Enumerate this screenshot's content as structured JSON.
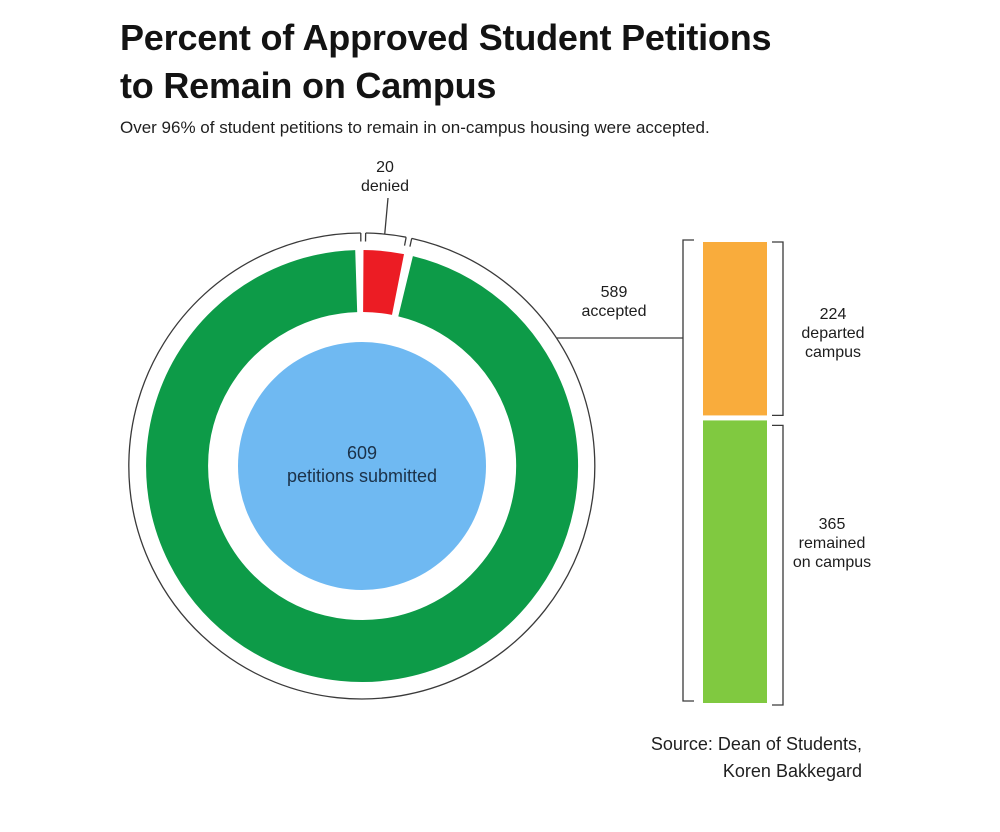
{
  "header": {
    "title_line1": "Percent of Approved Student Petitions",
    "title_line2": "to Remain on Campus",
    "subtitle": "Over 96% of student petitions to remain in on-campus housing were accepted."
  },
  "annotations": {
    "denied": {
      "value": "20",
      "label": "denied"
    },
    "accepted": {
      "value": "589",
      "label": "accepted"
    },
    "center": {
      "value": "609",
      "label": "petitions submitted"
    },
    "departed": {
      "value": "224",
      "line1": "departed",
      "line2": "campus"
    },
    "remained": {
      "value": "365",
      "line1": "remained",
      "line2": "on campus"
    }
  },
  "source": {
    "line1": "Source: Dean of Students,",
    "line2": "Koren Bakkegard"
  },
  "chart_data": [
    {
      "type": "pie",
      "subtype": "donut",
      "title": "Percent of Approved Student Petitions to Remain on Campus",
      "subtitle": "Over 96% of student petitions to remain in on-campus housing were accepted.",
      "categories": [
        "accepted",
        "denied"
      ],
      "values": [
        589,
        20
      ],
      "total": 609,
      "center_label": "609 petitions submitted",
      "legend_position": "annotations",
      "colors": {
        "accepted": "#0d9b48",
        "denied": "#ec1c24",
        "center": "#6fb9f2",
        "line": "#3a3a3a"
      }
    },
    {
      "type": "bar",
      "subtype": "stacked-single-column",
      "represents": "589 accepted",
      "categories": [
        "departed campus",
        "remained on campus"
      ],
      "values": [
        224,
        365
      ],
      "colors": {
        "departed": "#f9ac3c",
        "remained": "#80c940",
        "line": "#3a3a3a"
      }
    }
  ]
}
